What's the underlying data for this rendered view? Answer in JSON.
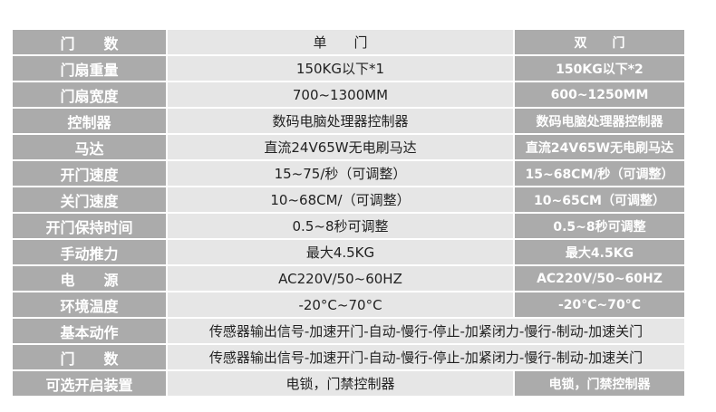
{
  "rows": [
    {
      "label": "门　　数",
      "single": "单　　门",
      "double": "双　　门"
    },
    {
      "label": "门扇重量",
      "single": "150KG以下*1",
      "double": "150KG以下*2"
    },
    {
      "label": "门扇宽度",
      "single": "700~1300MM",
      "double": "600~1250MM"
    },
    {
      "label": "控制器",
      "single": "数码电脑处理器控制器",
      "double": "数码电脑处理器控制器"
    },
    {
      "label": "马达",
      "single": "直流24V65W无电刷马达",
      "double": "直流24V65W无电刷马达"
    },
    {
      "label": "开门速度",
      "single": "15~75/秒（可调整）",
      "double": "15~68CM/秒（可调整）"
    },
    {
      "label": "关门速度",
      "single": "10~68CM/（可调整）",
      "double": "10~65CM（可调整）"
    },
    {
      "label": "开门保持时间",
      "single": "0.5~8秒可调整",
      "double": "0.5~8秒可调整"
    },
    {
      "label": "手动推力",
      "single": "最大4.5KG",
      "double": "最大4.5KG"
    },
    {
      "label": "电　　源",
      "single": "AC220V/50~60HZ",
      "double": "AC220V/50~60HZ"
    },
    {
      "label": "环境温度",
      "single": "-20°C~70°C",
      "double": "-20°C~70°C"
    }
  ],
  "span_rows": [
    {
      "label": "基本动作",
      "value": "传感器输出信号-加速开门-自动-慢行-停止-加紧闭力-慢行-制动-加速关门"
    },
    {
      "label": "门　　数",
      "value": "传感器输出信号-加速开门-自动-慢行-停止-加紧闭力-慢行-制动-加速关门"
    }
  ],
  "last_row": {
    "label": "可选开启装置",
    "single": "电锁，门禁控制器",
    "double": "电锁，门禁控制器"
  }
}
